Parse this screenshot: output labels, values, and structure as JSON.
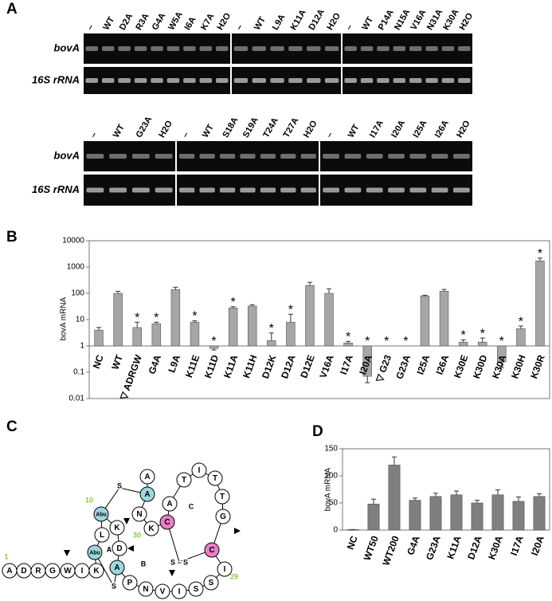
{
  "panel_labels": [
    "A",
    "B",
    "C",
    "D"
  ],
  "gel_rows": [
    {
      "row_labels": [
        "bovA",
        "16S rRNA"
      ],
      "gels": [
        {
          "lanes": [
            "–",
            "WT",
            "D2A",
            "R3A",
            "G4A",
            "W5A",
            "I6A",
            "K7A",
            "H2O"
          ]
        },
        {
          "lanes": [
            "–",
            "WT",
            "L9A",
            "K11A",
            "D12A",
            "H2O"
          ]
        },
        {
          "lanes": [
            "–",
            "WT",
            "P14A",
            "N15A",
            "V16A",
            "N31A",
            "K30A",
            "H2O"
          ]
        }
      ]
    },
    {
      "row_labels": [
        "bovA",
        "16S rRNA"
      ],
      "gels": [
        {
          "lanes": [
            "–",
            "WT",
            "G23A",
            "H2O"
          ]
        },
        {
          "lanes": [
            "–",
            "WT",
            "S18A",
            "S19A",
            "T24A",
            "T27A",
            "H2O"
          ]
        },
        {
          "lanes": [
            "–",
            "WT",
            "I17A",
            "I20A",
            "I25A",
            "I26A",
            "H2O"
          ]
        }
      ]
    }
  ],
  "chart_data": [
    {
      "type": "bar",
      "y_label": "bovA mRNA",
      "log_scale": true,
      "color": "#a6a6a6",
      "categories": [
        "NC",
        "WT",
        "▽ ADRGW",
        "G4A",
        "L9A",
        "K11E",
        "K11D",
        "K11A",
        "K11H",
        "D12K",
        "D12A",
        "D12E",
        "V16A",
        "I17A",
        "I20A",
        "▽ G23",
        "G23A",
        "I25A",
        "I26A",
        "K30E",
        "K30D",
        "K30A",
        "K30H",
        "K30R"
      ],
      "values": [
        4,
        100,
        5,
        7,
        140,
        8,
        0.8,
        28,
        33,
        1.6,
        8,
        200,
        100,
        1.3,
        0.07,
        null,
        null,
        80,
        120,
        1.4,
        1.4,
        0.25,
        4.5,
        1700
      ],
      "errors": [
        1,
        20,
        3,
        1,
        30,
        1,
        0.1,
        3,
        4,
        1.5,
        8,
        60,
        50,
        0.2,
        0.03,
        null,
        null,
        5,
        20,
        0.3,
        0.6,
        0.1,
        1.2,
        500
      ],
      "annotations": [
        null,
        null,
        "*",
        "*",
        null,
        "*",
        "*",
        "*",
        null,
        "*",
        "*",
        null,
        null,
        "*",
        "*",
        "*",
        "*",
        null,
        null,
        "*",
        "*",
        "*",
        "*",
        "*"
      ],
      "ylim": [
        0.01,
        10000
      ],
      "yticks": [
        0.01,
        0.1,
        1,
        10,
        100,
        1000,
        10000
      ]
    },
    {
      "type": "bar",
      "y_label": "bovA mRNA",
      "log_scale": false,
      "color": "#7f7f7f",
      "categories": [
        "NC",
        "WT50",
        "WT200",
        "G4A",
        "G23A",
        "K11A",
        "D12A",
        "K30A",
        "I17A",
        "I20A"
      ],
      "values": [
        1,
        48,
        120,
        55,
        62,
        65,
        50,
        65,
        53,
        62
      ],
      "errors": [
        0,
        9,
        15,
        4,
        6,
        7,
        5,
        9,
        8,
        5
      ],
      "ylim": [
        0,
        150
      ],
      "yticks": [
        0,
        50,
        100,
        150
      ]
    }
  ],
  "diagram": {
    "nodes": [
      {
        "label": "A",
        "color": "#ffffff"
      },
      {
        "label": "D",
        "color": "#ffffff"
      },
      {
        "label": "R",
        "color": "#ffffff"
      },
      {
        "label": "G",
        "color": "#ffffff"
      },
      {
        "label": "W",
        "color": "#ffffff"
      },
      {
        "label": "I",
        "color": "#ffffff"
      },
      {
        "label": "K",
        "color": "#ffffff"
      },
      {
        "label": "Abu",
        "color": "#9fd6de"
      },
      {
        "label": "L",
        "color": "#ffffff"
      },
      {
        "label": "Abu",
        "color": "#9fd6de"
      },
      {
        "label": "K",
        "color": "#ffffff"
      },
      {
        "label": "D",
        "color": "#ffffff"
      },
      {
        "label": "A",
        "color": "#9fd6de"
      },
      {
        "label": "P",
        "color": "#ffffff"
      },
      {
        "label": "N",
        "color": "#ffffff"
      },
      {
        "label": "V",
        "color": "#ffffff"
      },
      {
        "label": "I",
        "color": "#ffffff"
      },
      {
        "label": "S",
        "color": "#ffffff"
      },
      {
        "label": "S",
        "color": "#ffffff"
      },
      {
        "label": "I",
        "color": "#ffffff"
      },
      {
        "label": "C",
        "color": "#e87fc4"
      },
      {
        "label": "G",
        "color": "#ffffff"
      },
      {
        "label": "T",
        "color": "#ffffff"
      },
      {
        "label": "T",
        "color": "#ffffff"
      },
      {
        "label": "I",
        "color": "#ffffff"
      },
      {
        "label": "T",
        "color": "#ffffff"
      },
      {
        "label": "A",
        "color": "#ffffff"
      },
      {
        "label": "C",
        "color": "#e87fc4"
      },
      {
        "label": "K",
        "color": "#ffffff"
      },
      {
        "label": "N",
        "color": "#ffffff"
      },
      {
        "label": "A",
        "color": "#9fd6de"
      },
      {
        "label": "A",
        "color": "#ffffff"
      }
    ],
    "numbers": [
      "1",
      "10",
      "30",
      "29"
    ],
    "annotations": [
      "A",
      "B",
      "C",
      "S",
      "S",
      "S – S"
    ]
  }
}
